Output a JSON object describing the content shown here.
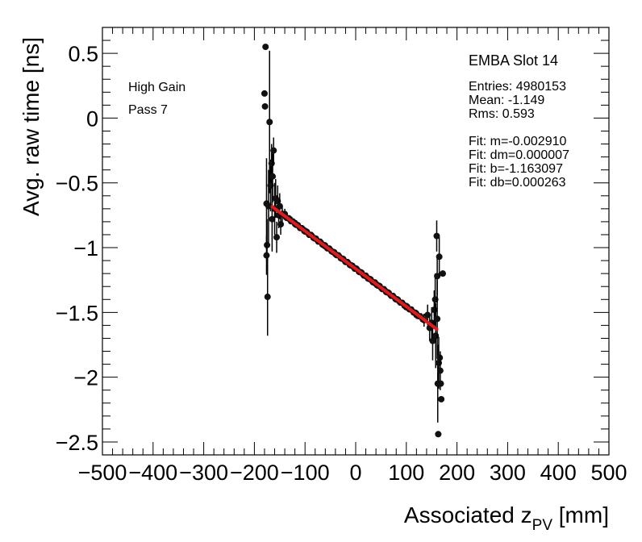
{
  "chart_data": {
    "type": "scatter",
    "xlabel_main": "Associated z",
    "xlabel_sub": "PV",
    "xlabel_unit": " [mm]",
    "ylabel": "Avg. raw time [ns]",
    "xlim": [
      -500,
      500
    ],
    "ylim": [
      -2.6,
      0.7
    ],
    "x_ticks": [
      -500,
      -400,
      -300,
      -200,
      -100,
      0,
      100,
      200,
      300,
      400,
      500
    ],
    "x_tick_labels": [
      "−500",
      "−400",
      "−300",
      "−200",
      "−100",
      "0",
      "100",
      "200",
      "300",
      "400",
      "500"
    ],
    "y_ticks": [
      0.5,
      0,
      -0.5,
      -1,
      -1.5,
      -2,
      -2.5
    ],
    "y_tick_labels": [
      "0.5",
      "0",
      "−0.5",
      "−1",
      "−1.5",
      "−2",
      "−2.5"
    ],
    "grid": false,
    "annotations_left": [
      "High Gain",
      "Pass 7"
    ],
    "stats_title": "EMBA Slot 14",
    "stats": [
      "Entries: 4980153",
      "Mean: -1.149",
      "Rms: 0.593",
      "",
      "Fit: m=-0.002910",
      "Fit: dm=0.000007",
      "Fit: b=-1.163097",
      "Fit: db=0.000263"
    ],
    "fit_line": {
      "m": -0.00291,
      "b": -1.163097,
      "x_range": [
        -165,
        160
      ],
      "color": "#e31a1c"
    },
    "points": [
      {
        "x": -178,
        "y": 0.55,
        "err": 0
      },
      {
        "x": -180,
        "y": 0.19,
        "err": 0
      },
      {
        "x": -179,
        "y": 0.09,
        "err": 0
      },
      {
        "x": -176,
        "y": -0.66,
        "err": 0.35
      },
      {
        "x": -175,
        "y": -0.98,
        "err": 0.2
      },
      {
        "x": -176,
        "y": -1.06,
        "err": 0.15
      },
      {
        "x": -174,
        "y": -1.38,
        "err": 0.3
      },
      {
        "x": -172,
        "y": -0.68,
        "err": 0.28
      },
      {
        "x": -170,
        "y": -0.03,
        "err": 0.55
      },
      {
        "x": -168,
        "y": -0.52,
        "err": 0.2
      },
      {
        "x": -166,
        "y": -0.35,
        "err": 0.15
      },
      {
        "x": -165,
        "y": -0.78,
        "err": 0.25
      },
      {
        "x": -164,
        "y": -0.45,
        "err": 0.2
      },
      {
        "x": -162,
        "y": -0.25,
        "err": 0.1
      },
      {
        "x": -160,
        "y": -0.7,
        "err": 0.2
      },
      {
        "x": -158,
        "y": -0.62,
        "err": 0.15
      },
      {
        "x": -156,
        "y": -0.92,
        "err": 0.12
      },
      {
        "x": -154,
        "y": -0.64,
        "err": 0.12
      },
      {
        "x": -152,
        "y": -0.75,
        "err": 0.1
      },
      {
        "x": -150,
        "y": -0.68,
        "err": 0.1
      },
      {
        "x": -148,
        "y": -0.82,
        "err": 0.08
      },
      {
        "x": -145,
        "y": -0.74,
        "err": 0.06
      },
      {
        "x": -140,
        "y": -0.74,
        "err": 0.04
      },
      {
        "x": -130,
        "y": -0.78,
        "err": 0.03
      },
      {
        "x": -120,
        "y": -0.81,
        "err": 0.02
      },
      {
        "x": -100,
        "y": -0.87,
        "err": 0.02
      },
      {
        "x": -80,
        "y": -0.93,
        "err": 0.015
      },
      {
        "x": -60,
        "y": -0.99,
        "err": 0.01
      },
      {
        "x": -40,
        "y": -1.05,
        "err": 0.01
      },
      {
        "x": -20,
        "y": -1.11,
        "err": 0.01
      },
      {
        "x": 0,
        "y": -1.16,
        "err": 0.01
      },
      {
        "x": 20,
        "y": -1.22,
        "err": 0.01
      },
      {
        "x": 40,
        "y": -1.28,
        "err": 0.01
      },
      {
        "x": 60,
        "y": -1.34,
        "err": 0.015
      },
      {
        "x": 80,
        "y": -1.4,
        "err": 0.02
      },
      {
        "x": 100,
        "y": -1.46,
        "err": 0.02
      },
      {
        "x": 120,
        "y": -1.52,
        "err": 0.03
      },
      {
        "x": 135,
        "y": -1.56,
        "err": 0.05
      },
      {
        "x": 142,
        "y": -1.52,
        "err": 0.08
      },
      {
        "x": 146,
        "y": -1.62,
        "err": 0.1
      },
      {
        "x": 150,
        "y": -1.58,
        "err": 0.12
      },
      {
        "x": 152,
        "y": -1.72,
        "err": 0.15
      },
      {
        "x": 155,
        "y": -1.48,
        "err": 0.15
      },
      {
        "x": 157,
        "y": -1.4,
        "err": 0.2
      },
      {
        "x": 158,
        "y": -1.68,
        "err": 0.25
      },
      {
        "x": 160,
        "y": -0.91,
        "err": 0.12
      },
      {
        "x": 161,
        "y": -1.22,
        "err": 0.15
      },
      {
        "x": 161,
        "y": -1.55,
        "err": 0.3
      },
      {
        "x": 162,
        "y": -2.05,
        "err": 0.3
      },
      {
        "x": 163,
        "y": -2.44,
        "err": 0
      },
      {
        "x": 164,
        "y": -1.89,
        "err": 0.2
      },
      {
        "x": 165,
        "y": -1.07,
        "err": 0.15
      },
      {
        "x": 166,
        "y": -1.85,
        "err": 0
      },
      {
        "x": 167,
        "y": -1.95,
        "err": 0.15
      },
      {
        "x": 168,
        "y": -2.05,
        "err": 0
      },
      {
        "x": 169,
        "y": -2.17,
        "err": 0
      },
      {
        "x": 172,
        "y": -1.2,
        "err": 0
      }
    ]
  }
}
